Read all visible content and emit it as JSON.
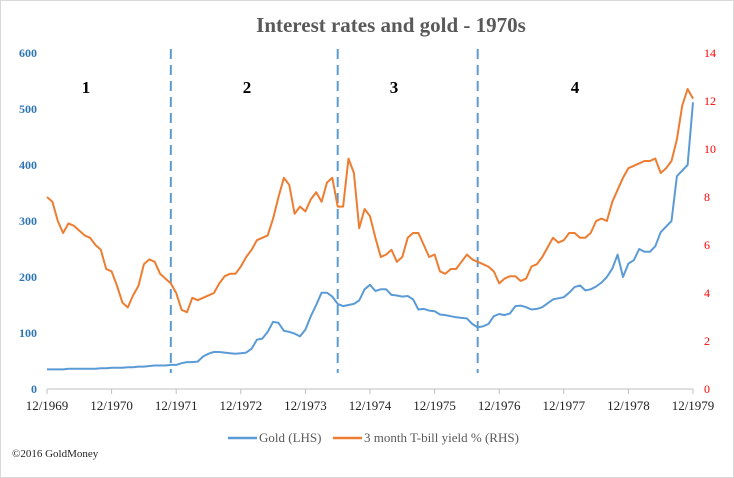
{
  "chart_data": {
    "type": "line",
    "title": "Interest rates and gold - 1970s",
    "x_tick_labels": [
      "12/1969",
      "12/1970",
      "12/1971",
      "12/1972",
      "12/1973",
      "12/1974",
      "12/1975",
      "12/1976",
      "12/1977",
      "12/1978",
      "12/1979"
    ],
    "y_left": {
      "ticks": [
        "0",
        "100",
        "200",
        "300",
        "400",
        "500",
        "600"
      ],
      "range": [
        0,
        600
      ],
      "color": "#2E75B6"
    },
    "y_right": {
      "ticks": [
        "0",
        "2",
        "4",
        "6",
        "8",
        "10",
        "12",
        "14"
      ],
      "range": [
        0,
        14
      ],
      "color": "#FF0000"
    },
    "grid": false,
    "legend_position": "bottom",
    "x_start": "12/1969",
    "x_frequency": "monthly",
    "series": [
      {
        "name": "Gold (LHS)",
        "axis": "left",
        "color": "#5B9BD5",
        "values": [
          35,
          35,
          35,
          35,
          36,
          36,
          36,
          36,
          36,
          36,
          37,
          37,
          38,
          38,
          38,
          39,
          39,
          40,
          40,
          41,
          42,
          42,
          42,
          43,
          43,
          46,
          48,
          48,
          49,
          58,
          63,
          66,
          66,
          65,
          64,
          63,
          64,
          65,
          72,
          88,
          90,
          102,
          120,
          118,
          104,
          102,
          99,
          94,
          106,
          130,
          150,
          172,
          172,
          165,
          152,
          148,
          150,
          152,
          158,
          178,
          186,
          175,
          178,
          178,
          168,
          167,
          165,
          166,
          160,
          142,
          143,
          140,
          139,
          133,
          132,
          130,
          128,
          127,
          126,
          116,
          110,
          112,
          116,
          130,
          134,
          132,
          135,
          148,
          149,
          146,
          142,
          143,
          146,
          153,
          160,
          162,
          164,
          172,
          182,
          185,
          176,
          178,
          183,
          190,
          200,
          215,
          240,
          200,
          224,
          230,
          250,
          245,
          245,
          255,
          280,
          290,
          300,
          380,
          390,
          400,
          512
        ]
      },
      {
        "name": "3 month T-bill yield % (RHS)",
        "axis": "right",
        "color": "#ED7D31",
        "values": [
          8.0,
          7.8,
          7.0,
          6.5,
          6.9,
          6.8,
          6.6,
          6.4,
          6.3,
          6.0,
          5.8,
          5.0,
          4.9,
          4.3,
          3.6,
          3.4,
          3.9,
          4.3,
          5.2,
          5.4,
          5.3,
          4.8,
          4.6,
          4.4,
          4.0,
          3.3,
          3.2,
          3.8,
          3.7,
          3.8,
          3.9,
          4.0,
          4.4,
          4.7,
          4.8,
          4.8,
          5.1,
          5.5,
          5.8,
          6.2,
          6.3,
          6.4,
          7.1,
          8.0,
          8.8,
          8.5,
          7.3,
          7.6,
          7.4,
          7.9,
          8.2,
          7.8,
          8.6,
          8.8,
          7.6,
          7.6,
          9.6,
          9.0,
          6.7,
          7.5,
          7.2,
          6.3,
          5.5,
          5.6,
          5.8,
          5.3,
          5.5,
          6.3,
          6.5,
          6.5,
          6.0,
          5.5,
          5.6,
          4.9,
          4.8,
          5.0,
          5.0,
          5.3,
          5.6,
          5.4,
          5.3,
          5.2,
          5.1,
          4.9,
          4.4,
          4.6,
          4.7,
          4.7,
          4.5,
          4.6,
          5.1,
          5.2,
          5.5,
          5.9,
          6.3,
          6.1,
          6.2,
          6.5,
          6.5,
          6.3,
          6.3,
          6.5,
          7.0,
          7.1,
          7.0,
          7.8,
          8.3,
          8.8,
          9.2,
          9.3,
          9.4,
          9.5,
          9.5,
          9.6,
          9.0,
          9.2,
          9.5,
          10.4,
          11.8,
          12.5,
          12.1
        ]
      }
    ],
    "phase_dividers": [
      "11/1971",
      "6/1974",
      "8/1976"
    ],
    "annotations": [
      "1",
      "2",
      "3",
      "4"
    ]
  },
  "footer": {
    "copyright": "©2016 GoldMoney"
  }
}
